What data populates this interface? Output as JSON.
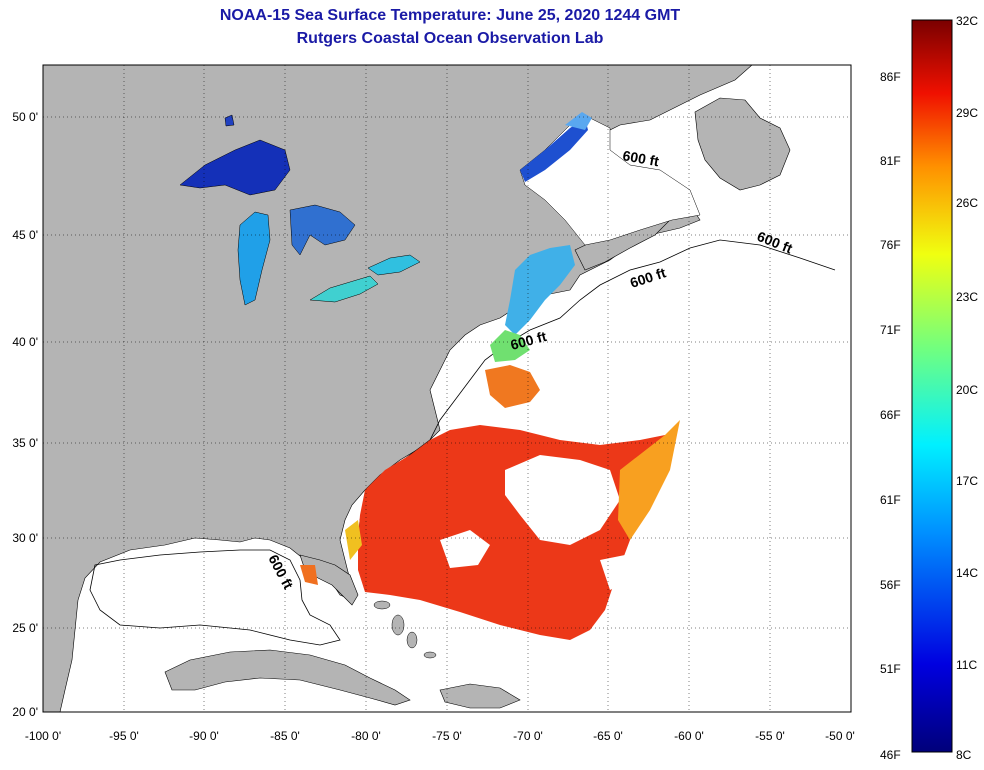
{
  "header": {
    "title": "NOAA-15 Sea Surface Temperature:  June 25, 2020 1244 GMT",
    "subtitle": "Rutgers Coastal Ocean Observation Lab"
  },
  "axes": {
    "lon_ticks": [
      "-100 0'",
      "-95 0'",
      "-90 0'",
      "-85 0'",
      "-80 0'",
      "-75 0'",
      "-70 0'",
      "-65 0'",
      "-60 0'",
      "-55 0'",
      "-50 0'"
    ],
    "lat_ticks": [
      "50 0'",
      "45 0'",
      "40 0'",
      "35 0'",
      "30 0'",
      "25 0'",
      "20 0'"
    ]
  },
  "contour_labels": [
    "600 ft",
    "600 ft",
    "600 ft",
    "600 ft",
    "600 ft"
  ],
  "colorbar": {
    "left_labels": [
      "86F",
      "81F",
      "76F",
      "71F",
      "66F",
      "61F",
      "56F",
      "51F",
      "46F"
    ],
    "right_labels": [
      "32C",
      "29C",
      "26C",
      "23C",
      "20C",
      "17C",
      "14C",
      "11C",
      "8C"
    ]
  },
  "colors": {
    "land": "#b4b4b4",
    "title": "#1a1aa6",
    "sst_warm": "#ee3010",
    "sst_mid": "#f88020",
    "sst_cool": "#20c8f0",
    "sst_cold": "#1020b0"
  }
}
